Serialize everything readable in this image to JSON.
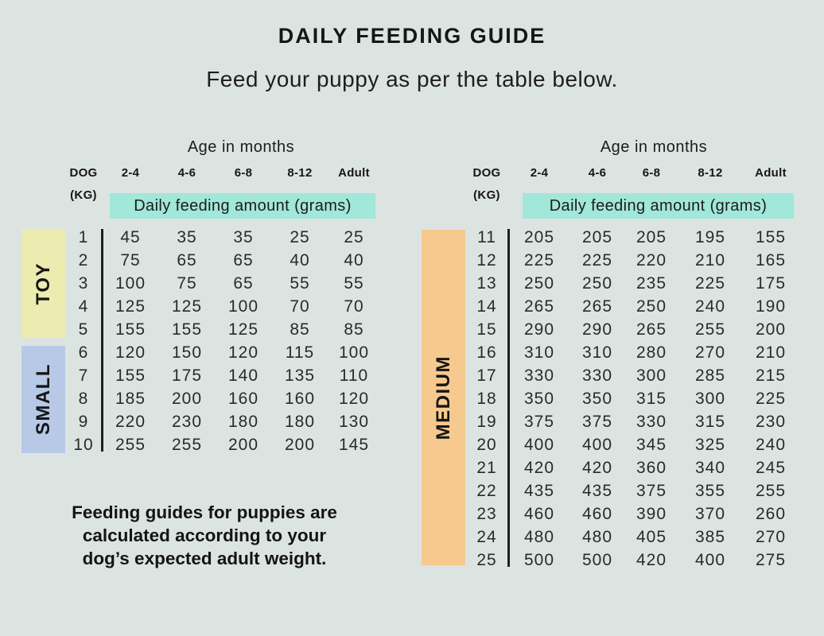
{
  "page": {
    "title": "DAILY FEEDING GUIDE",
    "subtitle": "Feed your puppy as per the table below.",
    "footer_lines": [
      "Feeding guides for puppies are",
      "calculated according to your",
      "dog’s expected adult weight."
    ]
  },
  "colors": {
    "background": "#dce4e2",
    "highlight_teal": "#a1e7da",
    "toy_band": "#edecb0",
    "small_band": "#b8c9e8",
    "medium_band": "#f6c98e",
    "text": "#1d1d1b"
  },
  "chart_data": [
    {
      "type": "table",
      "title": "Age in months",
      "dog_label": "DOG",
      "kg_label": "(KG)",
      "age_columns": [
        "2-4",
        "4-6",
        "6-8",
        "8-12",
        "Adult"
      ],
      "amount_label": "Daily feeding amount (grams)",
      "size_groups": [
        {
          "label": "TOY",
          "band_color": "#edecb0",
          "rows": [
            {
              "kg": 1,
              "values": [
                45,
                35,
                35,
                25,
                25
              ]
            },
            {
              "kg": 2,
              "values": [
                75,
                65,
                65,
                40,
                40
              ]
            },
            {
              "kg": 3,
              "values": [
                100,
                75,
                65,
                55,
                55
              ]
            },
            {
              "kg": 4,
              "values": [
                125,
                125,
                100,
                70,
                70
              ]
            },
            {
              "kg": 5,
              "values": [
                155,
                155,
                125,
                85,
                85
              ]
            }
          ]
        },
        {
          "label": "SMALL",
          "band_color": "#b8c9e8",
          "rows": [
            {
              "kg": 6,
              "values": [
                120,
                150,
                120,
                115,
                100
              ]
            },
            {
              "kg": 7,
              "values": [
                155,
                175,
                140,
                135,
                110
              ]
            },
            {
              "kg": 8,
              "values": [
                185,
                200,
                160,
                160,
                120
              ]
            },
            {
              "kg": 9,
              "values": [
                220,
                230,
                180,
                180,
                130
              ]
            },
            {
              "kg": 10,
              "values": [
                255,
                255,
                200,
                200,
                145
              ]
            }
          ]
        }
      ]
    },
    {
      "type": "table",
      "title": "Age in months",
      "dog_label": "DOG",
      "kg_label": "(KG)",
      "age_columns": [
        "2-4",
        "4-6",
        "6-8",
        "8-12",
        "Adult"
      ],
      "amount_label": "Daily feeding amount (grams)",
      "size_groups": [
        {
          "label": "MEDIUM",
          "band_color": "#f6c98e",
          "rows": [
            {
              "kg": 11,
              "values": [
                205,
                205,
                205,
                195,
                155
              ]
            },
            {
              "kg": 12,
              "values": [
                225,
                225,
                220,
                210,
                165
              ]
            },
            {
              "kg": 13,
              "values": [
                250,
                250,
                235,
                225,
                175
              ]
            },
            {
              "kg": 14,
              "values": [
                265,
                265,
                250,
                240,
                190
              ]
            },
            {
              "kg": 15,
              "values": [
                290,
                290,
                265,
                255,
                200
              ]
            },
            {
              "kg": 16,
              "values": [
                310,
                310,
                280,
                270,
                210
              ]
            },
            {
              "kg": 17,
              "values": [
                330,
                330,
                300,
                285,
                215
              ]
            },
            {
              "kg": 18,
              "values": [
                350,
                350,
                315,
                300,
                225
              ]
            },
            {
              "kg": 19,
              "values": [
                375,
                375,
                330,
                315,
                230
              ]
            },
            {
              "kg": 20,
              "values": [
                400,
                400,
                345,
                325,
                240
              ]
            },
            {
              "kg": 21,
              "values": [
                420,
                420,
                360,
                340,
                245
              ]
            },
            {
              "kg": 22,
              "values": [
                435,
                435,
                375,
                355,
                255
              ]
            },
            {
              "kg": 23,
              "values": [
                460,
                460,
                390,
                370,
                260
              ]
            },
            {
              "kg": 24,
              "values": [
                480,
                480,
                405,
                385,
                270
              ]
            },
            {
              "kg": 25,
              "values": [
                500,
                500,
                420,
                400,
                275
              ]
            }
          ]
        }
      ]
    }
  ]
}
